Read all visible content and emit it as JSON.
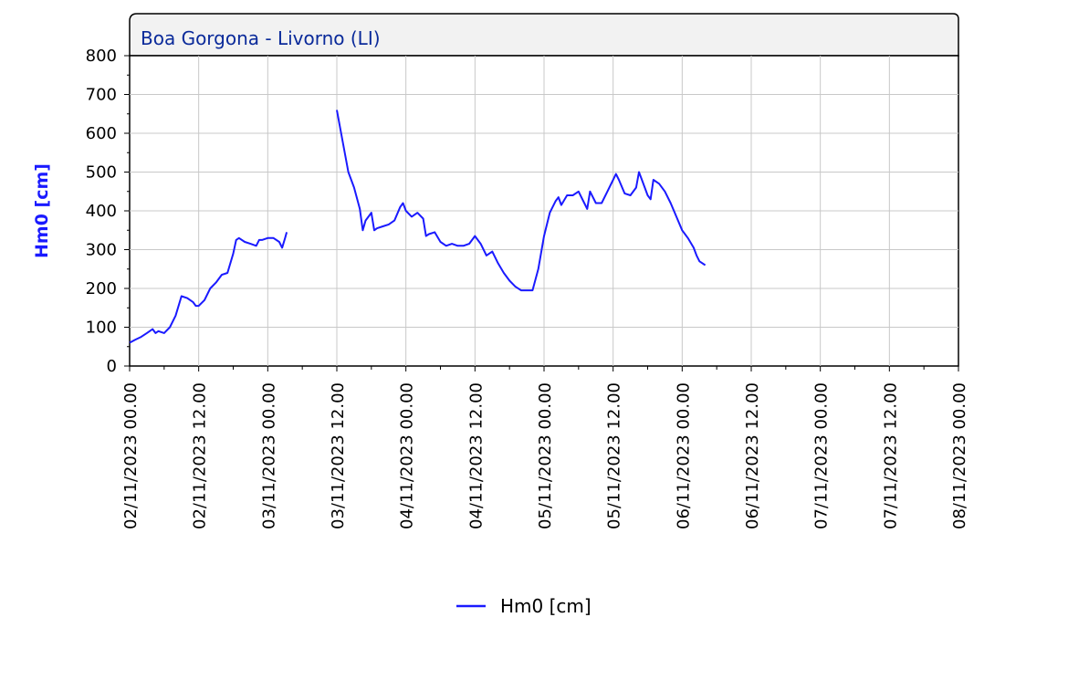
{
  "chart_data": {
    "type": "line",
    "title": "Boa Gorgona - Livorno (LI)",
    "ylabel": "Hm0 [cm]",
    "xlabel": "",
    "ylim": [
      0,
      800
    ],
    "yticks": [
      0,
      100,
      200,
      300,
      400,
      500,
      600,
      700,
      800
    ],
    "x_unit": "hours since 02/11/2023 00.00",
    "xlim": [
      0,
      144
    ],
    "xtick_hours": [
      0,
      12,
      24,
      36,
      48,
      60,
      72,
      84,
      96,
      108,
      120,
      132,
      144
    ],
    "xtick_labels": [
      "02/11/2023 00.00",
      "02/11/2023 12.00",
      "03/11/2023 00.00",
      "03/11/2023 12.00",
      "04/11/2023 00.00",
      "04/11/2023 12.00",
      "05/11/2023 00.00",
      "05/11/2023 12.00",
      "06/11/2023 00.00",
      "06/11/2023 12.00",
      "07/11/2023 00.00",
      "07/11/2023 12.00",
      "08/11/2023 00.00"
    ],
    "grid": true,
    "legend_position": "bottom-center",
    "series": [
      {
        "name": "Hm0 [cm]",
        "color": "#1a1aff",
        "segments": [
          [
            [
              0,
              60
            ],
            [
              1,
              68
            ],
            [
              2,
              75
            ],
            [
              3,
              85
            ],
            [
              4,
              95
            ],
            [
              4.5,
              85
            ],
            [
              5,
              90
            ],
            [
              6,
              85
            ],
            [
              7,
              100
            ],
            [
              8,
              130
            ],
            [
              9,
              180
            ],
            [
              10,
              175
            ],
            [
              11,
              165
            ],
            [
              11.5,
              155
            ],
            [
              12,
              155
            ],
            [
              13,
              170
            ],
            [
              14,
              200
            ],
            [
              15,
              215
            ],
            [
              16,
              235
            ],
            [
              17,
              240
            ],
            [
              18,
              290
            ],
            [
              18.5,
              325
            ],
            [
              19,
              330
            ],
            [
              20,
              320
            ],
            [
              21,
              315
            ],
            [
              22,
              310
            ],
            [
              22.5,
              325
            ],
            [
              23,
              325
            ],
            [
              24,
              330
            ],
            [
              25,
              330
            ],
            [
              26,
              320
            ],
            [
              26.5,
              305
            ],
            [
              27,
              330
            ],
            [
              27.3,
              345
            ]
          ],
          [
            [
              36,
              660
            ],
            [
              37,
              580
            ],
            [
              38,
              500
            ],
            [
              39,
              460
            ],
            [
              40,
              405
            ],
            [
              40.5,
              350
            ],
            [
              41,
              375
            ],
            [
              42,
              395
            ],
            [
              42.5,
              350
            ],
            [
              43,
              355
            ],
            [
              44,
              360
            ],
            [
              45,
              365
            ],
            [
              46,
              375
            ],
            [
              47,
              410
            ],
            [
              47.5,
              420
            ],
            [
              48,
              400
            ],
            [
              49,
              385
            ],
            [
              50,
              395
            ],
            [
              51,
              380
            ],
            [
              51.5,
              335
            ],
            [
              52,
              340
            ],
            [
              53,
              345
            ],
            [
              54,
              320
            ],
            [
              55,
              310
            ],
            [
              56,
              315
            ],
            [
              57,
              310
            ],
            [
              58,
              310
            ],
            [
              59,
              315
            ],
            [
              60,
              335
            ],
            [
              61,
              315
            ],
            [
              62,
              285
            ],
            [
              63,
              295
            ],
            [
              64,
              265
            ],
            [
              65,
              240
            ],
            [
              66,
              220
            ],
            [
              67,
              205
            ],
            [
              68,
              195
            ],
            [
              69,
              195
            ],
            [
              70,
              195
            ],
            [
              71,
              250
            ],
            [
              72,
              335
            ],
            [
              73,
              395
            ],
            [
              74,
              425
            ],
            [
              74.5,
              435
            ],
            [
              75,
              415
            ],
            [
              76,
              440
            ],
            [
              77,
              440
            ],
            [
              78,
              450
            ],
            [
              79,
              420
            ],
            [
              79.5,
              405
            ],
            [
              80,
              450
            ],
            [
              81,
              420
            ],
            [
              82,
              420
            ],
            [
              83,
              450
            ],
            [
              84,
              480
            ],
            [
              84.5,
              495
            ],
            [
              85,
              480
            ],
            [
              86,
              445
            ],
            [
              87,
              440
            ],
            [
              88,
              460
            ],
            [
              88.5,
              500
            ],
            [
              89,
              480
            ],
            [
              90,
              440
            ],
            [
              90.5,
              430
            ],
            [
              91,
              480
            ],
            [
              92,
              470
            ],
            [
              93,
              450
            ],
            [
              94,
              420
            ],
            [
              95,
              385
            ],
            [
              96,
              350
            ],
            [
              97,
              330
            ],
            [
              98,
              305
            ],
            [
              98.5,
              285
            ],
            [
              99,
              270
            ],
            [
              100,
              260
            ]
          ]
        ]
      }
    ]
  }
}
